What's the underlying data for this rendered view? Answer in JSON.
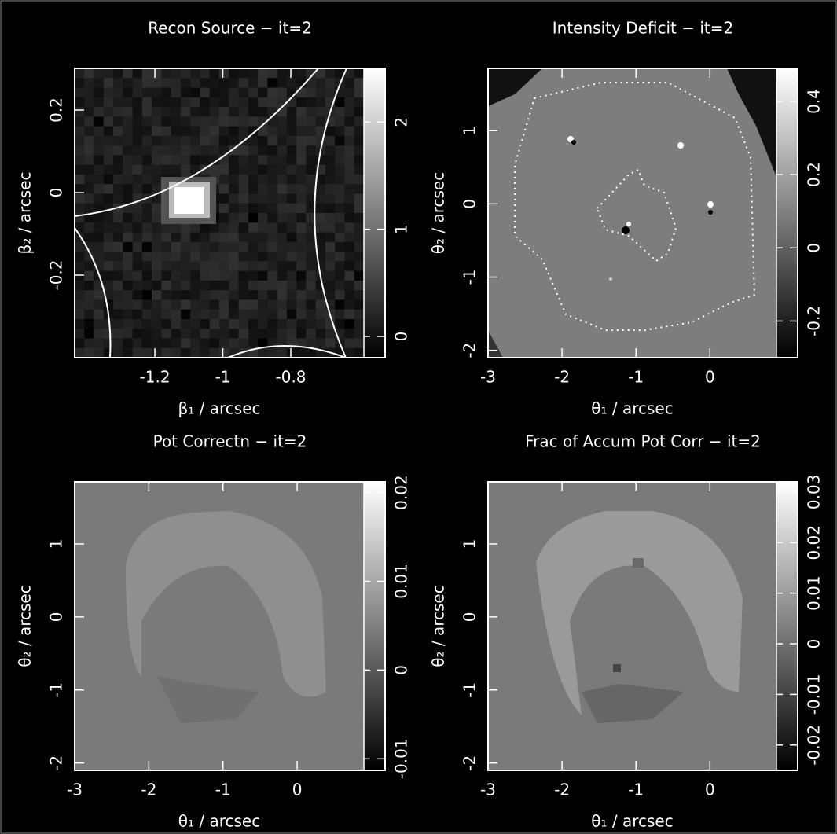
{
  "chart_data": [
    {
      "type": "image",
      "title": "Recon Source − it=2",
      "xlabel": "β₁ / arcsec",
      "ylabel": "β₂ / arcsec",
      "xlim": [
        -1.436,
        -0.585
      ],
      "ylim": [
        -0.4,
        0.301
      ],
      "xticks": [
        -1.2,
        -1,
        -0.8
      ],
      "yticks": [
        -0.2,
        0,
        0.2
      ],
      "colorbar": {
        "clim": [
          -0.198,
          2.5
        ],
        "ticks": [
          0,
          1,
          2
        ]
      }
    },
    {
      "type": "image",
      "title": "Intensity Deficit − it=2",
      "xlabel": "θ₁ / arcsec",
      "ylabel": "θ₂ / arcsec",
      "xlim": [
        -3,
        0.9
      ],
      "ylim": [
        -2.1,
        1.85
      ],
      "xticks": [
        -3,
        -2,
        -1,
        0
      ],
      "yticks": [
        -2,
        -1,
        0,
        1
      ],
      "colorbar": {
        "clim": [
          -0.3,
          0.49
        ],
        "ticks": [
          -0.2,
          0,
          0.2,
          0.4
        ]
      }
    },
    {
      "type": "image",
      "title": "Pot Correctn − it=2",
      "xlabel": "θ₁ / arcsec",
      "ylabel": "θ₂ / arcsec",
      "xlim": [
        -3,
        0.9
      ],
      "ylim": [
        -2.1,
        1.85
      ],
      "xticks": [
        -3,
        -2,
        -1,
        0
      ],
      "yticks": [
        -2,
        -1,
        0,
        1
      ],
      "colorbar": {
        "clim": [
          -0.0113,
          0.0212
        ],
        "ticks": [
          -0.01,
          0,
          0.01,
          0.02
        ]
      }
    },
    {
      "type": "image",
      "title": "Frac of Accum Pot Corr − it=2",
      "xlabel": "θ₁ / arcsec",
      "ylabel": "θ₂ / arcsec",
      "xlim": [
        -3,
        0.9
      ],
      "ylim": [
        -2.1,
        1.85
      ],
      "xticks": [
        -3,
        -2,
        -1,
        0
      ],
      "yticks": [
        -2,
        -1,
        0,
        1
      ],
      "colorbar": {
        "clim": [
          -0.025,
          0.032
        ],
        "ticks": [
          -0.02,
          -0.01,
          0,
          0.01,
          0.02,
          0.03
        ]
      }
    }
  ]
}
